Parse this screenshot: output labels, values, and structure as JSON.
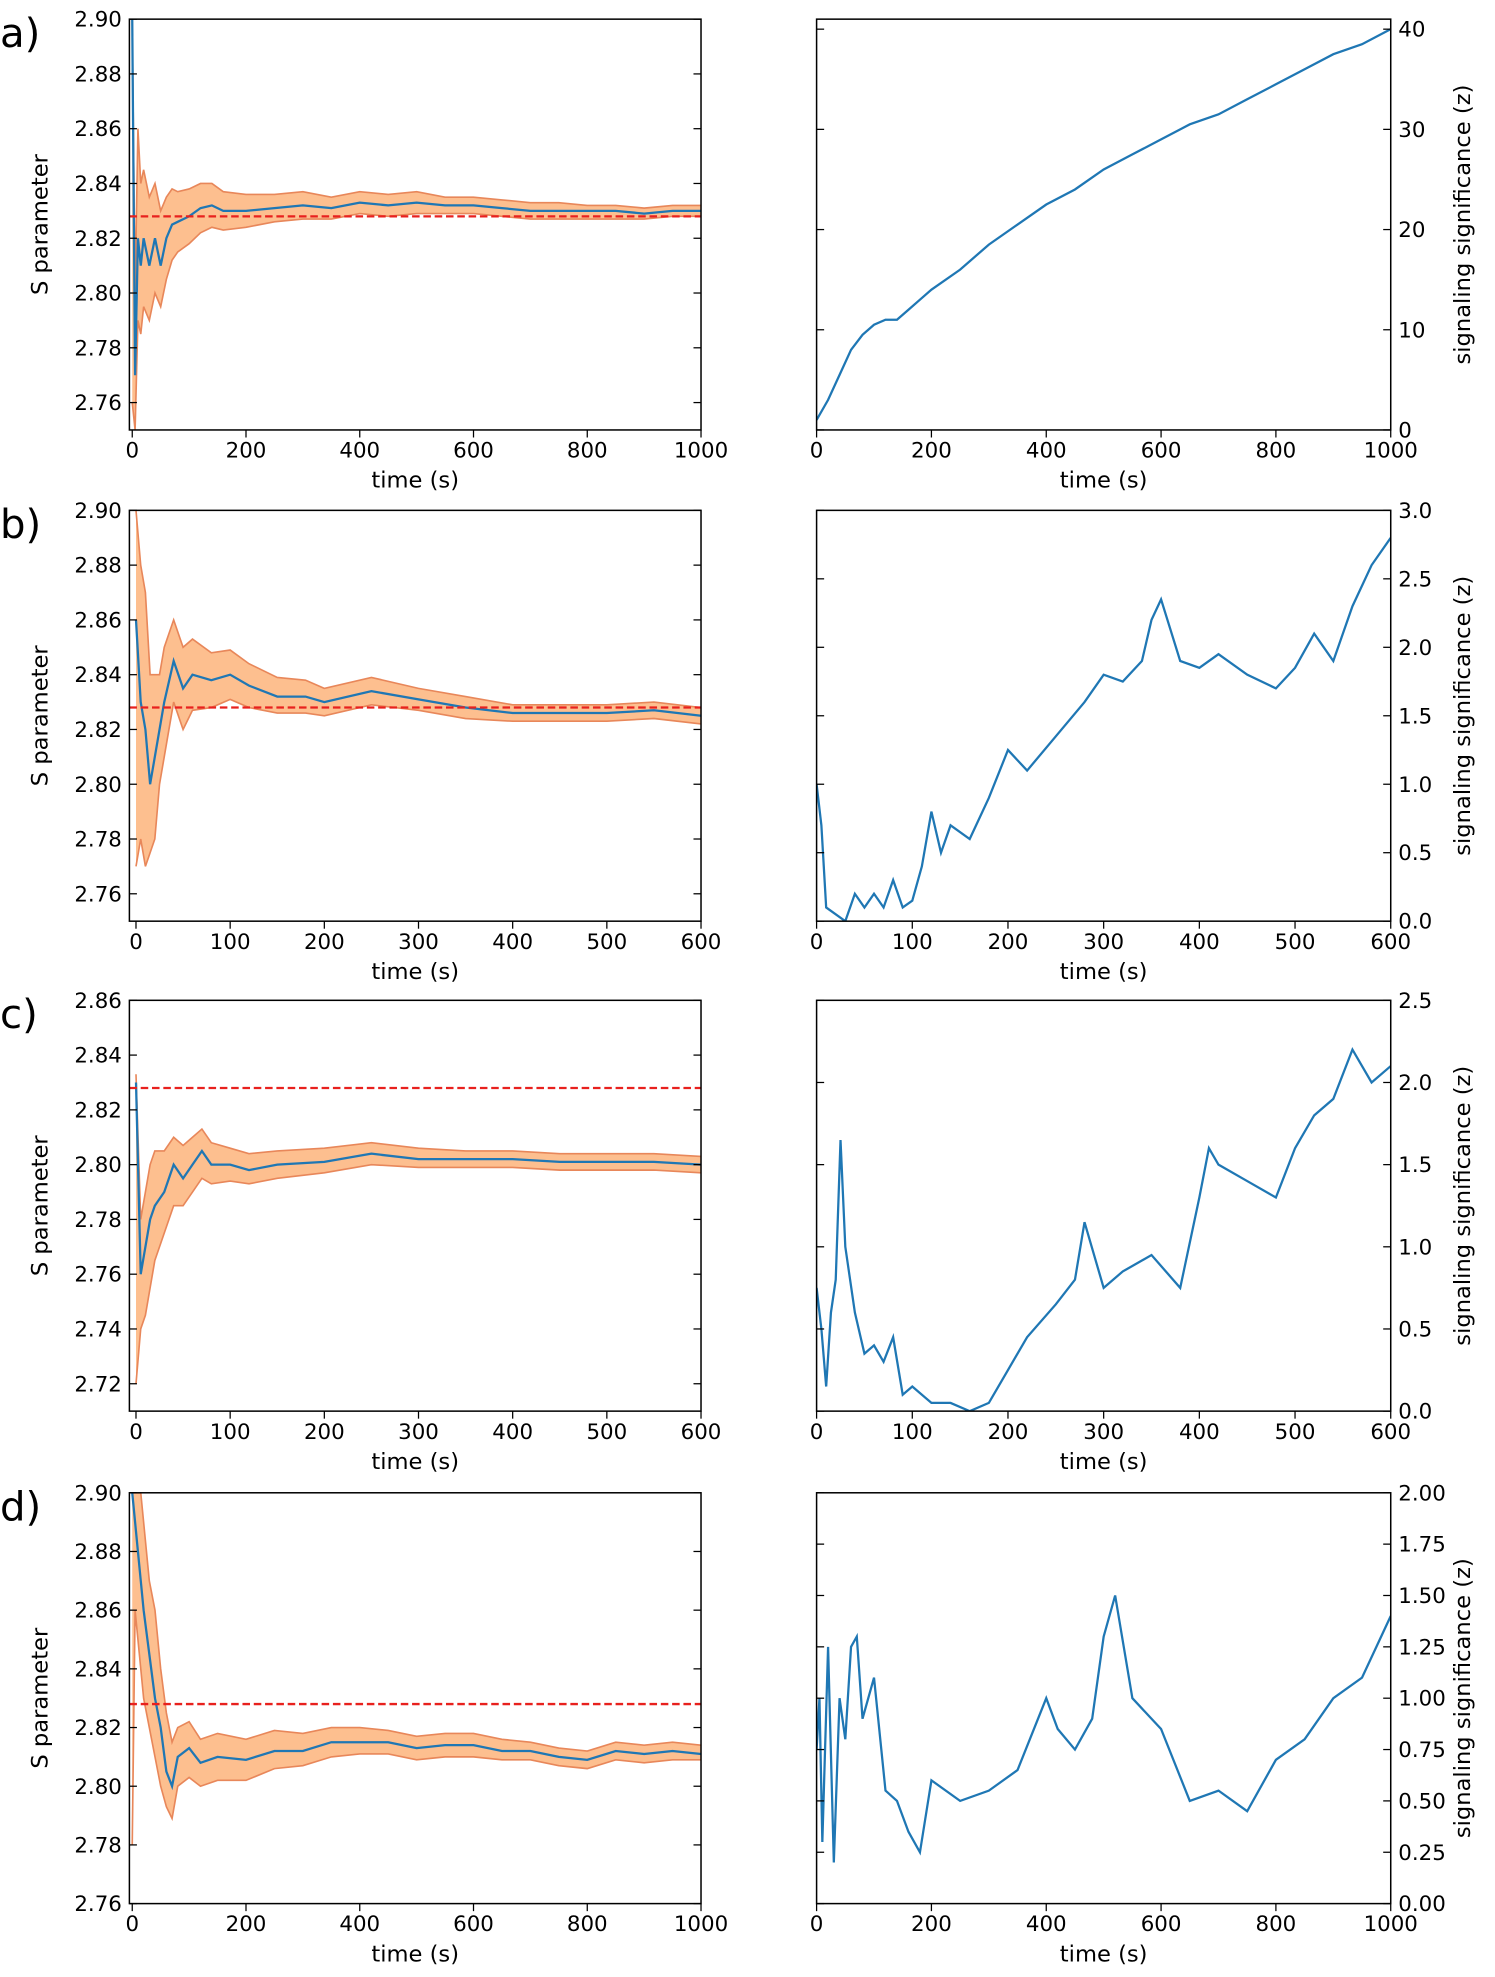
{
  "chart_data": [
    {
      "type": "line",
      "panel_label": "a)",
      "xlabel": "time (s)",
      "ylabel": "S parameter",
      "yaxis_side": "left",
      "xlim": [
        -5,
        1000
      ],
      "ylim": [
        2.75,
        2.9
      ],
      "xticks": [
        0,
        200,
        400,
        600,
        800,
        1000
      ],
      "yticks": [
        {
          "value": 2.76,
          "label": "2.76"
        },
        {
          "value": 2.78,
          "label": "2.78"
        },
        {
          "value": 2.8,
          "label": "2.80"
        },
        {
          "value": 2.82,
          "label": "2.82"
        },
        {
          "value": 2.84,
          "label": "2.84"
        },
        {
          "value": 2.86,
          "label": "2.86"
        },
        {
          "value": 2.88,
          "label": "2.88"
        },
        {
          "value": 2.9,
          "label": "2.90"
        }
      ],
      "x": [
        0,
        5,
        10,
        15,
        20,
        30,
        40,
        50,
        60,
        70,
        80,
        100,
        120,
        140,
        160,
        200,
        250,
        300,
        350,
        400,
        450,
        500,
        550,
        600,
        650,
        700,
        750,
        800,
        850,
        900,
        950,
        1000
      ],
      "series": [
        {
          "color": "#1f77b4",
          "values": [
            2.9,
            2.77,
            2.82,
            2.81,
            2.82,
            2.81,
            2.82,
            2.81,
            2.82,
            2.825,
            2.826,
            2.828,
            2.831,
            2.832,
            2.83,
            2.83,
            2.831,
            2.832,
            2.831,
            2.833,
            2.832,
            2.833,
            2.832,
            2.832,
            2.831,
            2.83,
            2.83,
            2.83,
            2.83,
            2.829,
            2.83,
            2.83
          ]
        }
      ],
      "band": {
        "color": "#fdbf8f",
        "edge_color": "#e8875a",
        "lower": [
          2.76,
          2.75,
          2.79,
          2.785,
          2.795,
          2.79,
          2.8,
          2.795,
          2.805,
          2.812,
          2.815,
          2.818,
          2.822,
          2.824,
          2.823,
          2.824,
          2.826,
          2.827,
          2.827,
          2.829,
          2.828,
          2.829,
          2.829,
          2.829,
          2.828,
          2.827,
          2.827,
          2.827,
          2.827,
          2.827,
          2.828,
          2.828
        ],
        "upper": [
          2.9,
          2.8,
          2.86,
          2.84,
          2.845,
          2.835,
          2.84,
          2.83,
          2.835,
          2.838,
          2.837,
          2.838,
          2.84,
          2.84,
          2.837,
          2.836,
          2.836,
          2.837,
          2.835,
          2.837,
          2.836,
          2.837,
          2.835,
          2.835,
          2.834,
          2.833,
          2.833,
          2.832,
          2.832,
          2.831,
          2.832,
          2.832
        ]
      },
      "reference_line": {
        "value": 2.828,
        "color": "#e8211e"
      }
    },
    {
      "type": "line",
      "xlabel": "time (s)",
      "ylabel": "signaling significance (z)",
      "yaxis_side": "right",
      "xlim": [
        0,
        1000
      ],
      "ylim": [
        0,
        41
      ],
      "xticks": [
        0,
        200,
        400,
        600,
        800,
        1000
      ],
      "yticks": [
        0,
        10,
        20,
        30,
        40
      ],
      "x": [
        0,
        20,
        40,
        60,
        80,
        100,
        120,
        140,
        160,
        180,
        200,
        250,
        300,
        350,
        400,
        450,
        500,
        550,
        600,
        650,
        700,
        750,
        800,
        850,
        900,
        950,
        1000
      ],
      "series": [
        {
          "color": "#1f77b4",
          "values": [
            1,
            3,
            5.5,
            8,
            9.5,
            10.5,
            11,
            11,
            12,
            13,
            14,
            16,
            18.5,
            20.5,
            22.5,
            24,
            26,
            27.5,
            29,
            30.5,
            31.5,
            33,
            34.5,
            36,
            37.5,
            38.5,
            40
          ]
        }
      ]
    },
    {
      "type": "line",
      "panel_label": "b)",
      "xlabel": "time (s)",
      "ylabel": "S parameter",
      "yaxis_side": "left",
      "xlim": [
        -7,
        600
      ],
      "ylim": [
        2.75,
        2.9
      ],
      "xticks": [
        0,
        100,
        200,
        300,
        400,
        500,
        600
      ],
      "yticks": [
        {
          "value": 2.76,
          "label": "2.76"
        },
        {
          "value": 2.78,
          "label": "2.78"
        },
        {
          "value": 2.8,
          "label": "2.80"
        },
        {
          "value": 2.82,
          "label": "2.82"
        },
        {
          "value": 2.84,
          "label": "2.84"
        },
        {
          "value": 2.86,
          "label": "2.86"
        },
        {
          "value": 2.88,
          "label": "2.88"
        },
        {
          "value": 2.9,
          "label": "2.90"
        }
      ],
      "x": [
        0,
        5,
        10,
        15,
        20,
        25,
        30,
        40,
        50,
        60,
        80,
        100,
        120,
        150,
        180,
        200,
        250,
        300,
        350,
        400,
        450,
        500,
        550,
        600
      ],
      "series": [
        {
          "color": "#1f77b4",
          "values": [
            2.86,
            2.83,
            2.82,
            2.8,
            2.81,
            2.82,
            2.83,
            2.845,
            2.835,
            2.84,
            2.838,
            2.84,
            2.836,
            2.832,
            2.832,
            2.83,
            2.834,
            2.831,
            2.828,
            2.826,
            2.826,
            2.826,
            2.827,
            2.825
          ]
        }
      ],
      "band": {
        "color": "#fdbf8f",
        "edge_color": "#e8875a",
        "lower": [
          2.77,
          2.78,
          2.77,
          2.775,
          2.78,
          2.8,
          2.81,
          2.83,
          2.82,
          2.827,
          2.828,
          2.831,
          2.828,
          2.826,
          2.826,
          2.825,
          2.829,
          2.827,
          2.824,
          2.823,
          2.823,
          2.823,
          2.824,
          2.822
        ],
        "upper": [
          2.9,
          2.88,
          2.87,
          2.84,
          2.84,
          2.84,
          2.85,
          2.86,
          2.85,
          2.853,
          2.848,
          2.849,
          2.844,
          2.839,
          2.838,
          2.835,
          2.839,
          2.835,
          2.832,
          2.829,
          2.829,
          2.829,
          2.83,
          2.828
        ]
      },
      "reference_line": {
        "value": 2.828,
        "color": "#e8211e"
      }
    },
    {
      "type": "line",
      "xlabel": "time (s)",
      "ylabel": "signaling significance (z)",
      "yaxis_side": "right",
      "xlim": [
        0,
        600
      ],
      "ylim": [
        0,
        3.0
      ],
      "xticks": [
        0,
        100,
        200,
        300,
        400,
        500,
        600
      ],
      "yticks": [
        {
          "value": 0,
          "label": "0.0"
        },
        0.5,
        {
          "value": 1,
          "label": "1.0"
        },
        1.5,
        {
          "value": 2,
          "label": "2.0"
        },
        2.5,
        {
          "value": 3,
          "label": "3.0"
        }
      ],
      "x": [
        0,
        5,
        10,
        20,
        30,
        40,
        50,
        60,
        70,
        80,
        90,
        100,
        110,
        120,
        130,
        140,
        160,
        180,
        200,
        220,
        250,
        280,
        300,
        320,
        340,
        350,
        360,
        380,
        400,
        420,
        450,
        480,
        500,
        520,
        540,
        560,
        580,
        600
      ],
      "series": [
        {
          "color": "#1f77b4",
          "values": [
            1.0,
            0.7,
            0.1,
            0.05,
            0.0,
            0.2,
            0.1,
            0.2,
            0.1,
            0.3,
            0.1,
            0.15,
            0.4,
            0.8,
            0.5,
            0.7,
            0.6,
            0.9,
            1.25,
            1.1,
            1.35,
            1.6,
            1.8,
            1.75,
            1.9,
            2.2,
            2.35,
            1.9,
            1.85,
            1.95,
            1.8,
            1.7,
            1.85,
            2.1,
            1.9,
            2.3,
            2.6,
            2.8
          ]
        }
      ]
    },
    {
      "type": "line",
      "panel_label": "c)",
      "xlabel": "time (s)",
      "ylabel": "S parameter",
      "yaxis_side": "left",
      "xlim": [
        -7,
        600
      ],
      "ylim": [
        2.71,
        2.86
      ],
      "xticks": [
        0,
        100,
        200,
        300,
        400,
        500,
        600
      ],
      "yticks": [
        {
          "value": 2.72,
          "label": "2.72"
        },
        {
          "value": 2.74,
          "label": "2.74"
        },
        {
          "value": 2.76,
          "label": "2.76"
        },
        {
          "value": 2.78,
          "label": "2.78"
        },
        {
          "value": 2.8,
          "label": "2.80"
        },
        {
          "value": 2.82,
          "label": "2.82"
        },
        {
          "value": 2.84,
          "label": "2.84"
        },
        {
          "value": 2.86,
          "label": "2.86"
        }
      ],
      "x": [
        0,
        5,
        10,
        15,
        20,
        30,
        40,
        50,
        60,
        70,
        80,
        100,
        120,
        150,
        200,
        250,
        300,
        350,
        400,
        450,
        500,
        550,
        600
      ],
      "series": [
        {
          "color": "#1f77b4",
          "values": [
            2.83,
            2.76,
            2.77,
            2.78,
            2.785,
            2.79,
            2.8,
            2.795,
            2.8,
            2.805,
            2.8,
            2.8,
            2.798,
            2.8,
            2.801,
            2.804,
            2.802,
            2.802,
            2.802,
            2.801,
            2.801,
            2.801,
            2.8
          ]
        }
      ],
      "band": {
        "color": "#fdbf8f",
        "edge_color": "#e8875a",
        "lower": [
          2.72,
          2.74,
          2.745,
          2.755,
          2.765,
          2.775,
          2.785,
          2.785,
          2.79,
          2.795,
          2.793,
          2.794,
          2.793,
          2.795,
          2.797,
          2.8,
          2.799,
          2.799,
          2.799,
          2.798,
          2.798,
          2.798,
          2.797
        ],
        "upper": [
          2.833,
          2.78,
          2.79,
          2.8,
          2.805,
          2.805,
          2.81,
          2.807,
          2.81,
          2.813,
          2.808,
          2.806,
          2.804,
          2.805,
          2.806,
          2.808,
          2.806,
          2.805,
          2.805,
          2.804,
          2.804,
          2.804,
          2.803
        ]
      },
      "reference_line": {
        "value": 2.828,
        "color": "#e8211e"
      }
    },
    {
      "type": "line",
      "xlabel": "time (s)",
      "ylabel": "signaling significance (z)",
      "yaxis_side": "right",
      "xlim": [
        0,
        600
      ],
      "ylim": [
        0,
        2.5
      ],
      "xticks": [
        0,
        100,
        200,
        300,
        400,
        500,
        600
      ],
      "yticks": [
        {
          "value": 0,
          "label": "0.0"
        },
        0.5,
        {
          "value": 1,
          "label": "1.0"
        },
        1.5,
        {
          "value": 2,
          "label": "2.0"
        },
        2.5
      ],
      "x": [
        0,
        5,
        10,
        15,
        20,
        25,
        30,
        40,
        50,
        60,
        70,
        80,
        90,
        100,
        120,
        140,
        160,
        180,
        200,
        220,
        250,
        270,
        280,
        300,
        320,
        350,
        380,
        400,
        410,
        420,
        450,
        480,
        500,
        520,
        540,
        560,
        580,
        600
      ],
      "series": [
        {
          "color": "#1f77b4",
          "values": [
            0.75,
            0.5,
            0.15,
            0.6,
            0.8,
            1.65,
            1.0,
            0.6,
            0.35,
            0.4,
            0.3,
            0.45,
            0.1,
            0.15,
            0.05,
            0.05,
            0.0,
            0.05,
            0.25,
            0.45,
            0.65,
            0.8,
            1.15,
            0.75,
            0.85,
            0.95,
            0.75,
            1.3,
            1.6,
            1.5,
            1.4,
            1.3,
            1.6,
            1.8,
            1.9,
            2.2,
            2.0,
            2.1
          ]
        }
      ]
    },
    {
      "type": "line",
      "panel_label": "d)",
      "xlabel": "time (s)",
      "ylabel": "S parameter",
      "yaxis_side": "left",
      "xlim": [
        -5,
        1000
      ],
      "ylim": [
        2.76,
        2.9
      ],
      "xticks": [
        0,
        200,
        400,
        600,
        800,
        1000
      ],
      "yticks": [
        {
          "value": 2.76,
          "label": "2.76"
        },
        {
          "value": 2.78,
          "label": "2.78"
        },
        {
          "value": 2.8,
          "label": "2.80"
        },
        {
          "value": 2.82,
          "label": "2.82"
        },
        {
          "value": 2.84,
          "label": "2.84"
        },
        {
          "value": 2.86,
          "label": "2.86"
        },
        {
          "value": 2.88,
          "label": "2.88"
        },
        {
          "value": 2.9,
          "label": "2.90"
        }
      ],
      "x": [
        0,
        5,
        10,
        15,
        20,
        30,
        40,
        50,
        60,
        70,
        80,
        100,
        120,
        150,
        200,
        250,
        300,
        350,
        400,
        450,
        500,
        550,
        600,
        650,
        700,
        750,
        800,
        850,
        900,
        950,
        1000
      ],
      "series": [
        {
          "color": "#1f77b4",
          "values": [
            2.9,
            2.89,
            2.88,
            2.87,
            2.86,
            2.845,
            2.83,
            2.82,
            2.805,
            2.8,
            2.81,
            2.813,
            2.808,
            2.81,
            2.809,
            2.812,
            2.812,
            2.815,
            2.815,
            2.815,
            2.813,
            2.814,
            2.814,
            2.812,
            2.812,
            2.81,
            2.809,
            2.812,
            2.811,
            2.812,
            2.811
          ]
        }
      ],
      "band": {
        "color": "#fdbf8f",
        "edge_color": "#e8875a",
        "lower": [
          2.78,
          2.86,
          2.85,
          2.84,
          2.83,
          2.82,
          2.81,
          2.8,
          2.793,
          2.789,
          2.8,
          2.803,
          2.8,
          2.802,
          2.802,
          2.806,
          2.807,
          2.81,
          2.811,
          2.811,
          2.809,
          2.81,
          2.81,
          2.809,
          2.809,
          2.807,
          2.806,
          2.809,
          2.808,
          2.809,
          2.809
        ],
        "upper": [
          2.9,
          2.9,
          2.9,
          2.9,
          2.89,
          2.87,
          2.86,
          2.84,
          2.825,
          2.815,
          2.82,
          2.822,
          2.816,
          2.818,
          2.816,
          2.819,
          2.818,
          2.82,
          2.82,
          2.819,
          2.817,
          2.818,
          2.818,
          2.816,
          2.815,
          2.813,
          2.812,
          2.815,
          2.814,
          2.815,
          2.814
        ]
      },
      "reference_line": {
        "value": 2.828,
        "color": "#e8211e"
      }
    },
    {
      "type": "line",
      "xlabel": "time (s)",
      "ylabel": "signaling significance (z)",
      "yaxis_side": "right",
      "xlim": [
        0,
        1000
      ],
      "ylim": [
        0,
        2.0
      ],
      "xticks": [
        0,
        200,
        400,
        600,
        800,
        1000
      ],
      "yticks": [
        {
          "value": 0,
          "label": "0.00"
        },
        0.25,
        {
          "value": 0.5,
          "label": "0.50"
        },
        0.75,
        {
          "value": 1,
          "label": "1.00"
        },
        1.25,
        {
          "value": 1.5,
          "label": "1.50"
        },
        1.75,
        {
          "value": 2,
          "label": "2.00"
        }
      ],
      "x": [
        0,
        5,
        10,
        20,
        30,
        40,
        50,
        60,
        70,
        80,
        100,
        120,
        140,
        160,
        180,
        200,
        250,
        300,
        350,
        400,
        420,
        450,
        480,
        500,
        520,
        550,
        600,
        650,
        700,
        750,
        800,
        850,
        900,
        950,
        1000
      ],
      "series": [
        {
          "color": "#1f77b4",
          "values": [
            0.75,
            1.0,
            0.3,
            1.25,
            0.2,
            1.0,
            0.8,
            1.25,
            1.3,
            0.9,
            1.1,
            0.55,
            0.5,
            0.35,
            0.25,
            0.6,
            0.5,
            0.55,
            0.65,
            1.0,
            0.85,
            0.75,
            0.9,
            1.3,
            1.5,
            1.0,
            0.85,
            0.5,
            0.55,
            0.45,
            0.7,
            0.8,
            1.0,
            1.1,
            1.4
          ]
        }
      ]
    }
  ]
}
